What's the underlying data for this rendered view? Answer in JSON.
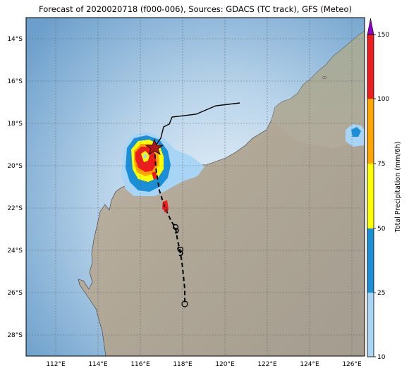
{
  "title": "Forecast of 2020020718 (f000-006), Sources: GDACS (TC track), GFS (Meteo)",
  "map": {
    "lon_ticks": [
      "112°E",
      "114°E",
      "116°E",
      "118°E",
      "120°E",
      "122°E",
      "124°E",
      "126°E"
    ],
    "lat_ticks": [
      "14°S",
      "16°S",
      "18°S",
      "20°S",
      "22°S",
      "24°S",
      "26°S",
      "28°S"
    ],
    "grid": "dotted",
    "colors": {
      "ocean_deep": "#6fa3cf",
      "ocean_shallow": "#d4e6f4",
      "land": "#b3aa9c",
      "track": "#000000"
    }
  },
  "colorbar": {
    "label": "Total Precipitation (mm/6h)",
    "ticks": [
      "10",
      "25",
      "50",
      "75",
      "100",
      "150"
    ],
    "colors": [
      "#a8d4f5",
      "#1a8fd8",
      "#ffff00",
      "#ffa500",
      "#ee1c1c",
      "#8b00cc"
    ]
  }
}
